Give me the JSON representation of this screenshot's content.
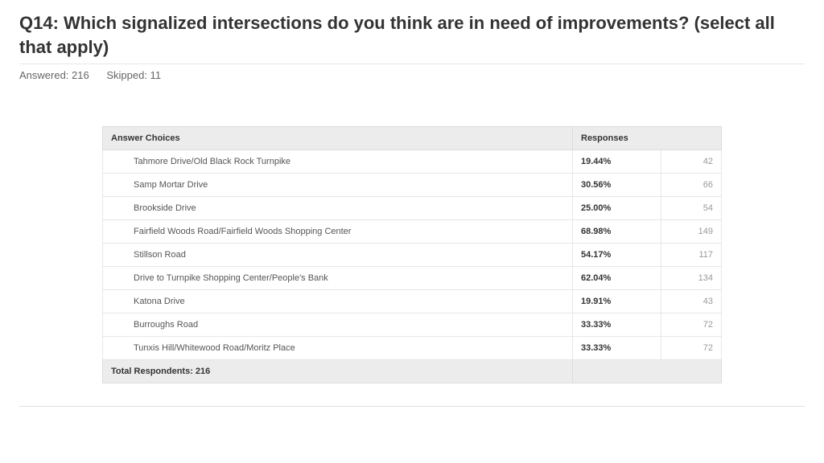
{
  "question": {
    "title": "Q14: Which signalized intersections do you think are in need of improvements?  (select all that apply)",
    "answered_label": "Answered: 216",
    "skipped_label": "Skipped: 11"
  },
  "table": {
    "header_choices": "Answer Choices",
    "header_responses": "Responses",
    "rows": [
      {
        "label": "Tahmore Drive/Old Black Rock Turnpike",
        "pct": "19.44%",
        "count": "42"
      },
      {
        "label": "Samp Mortar Drive",
        "pct": "30.56%",
        "count": "66"
      },
      {
        "label": "Brookside Drive",
        "pct": "25.00%",
        "count": "54"
      },
      {
        "label": "Fairfield Woods Road/Fairfield Woods Shopping Center",
        "pct": "68.98%",
        "count": "149"
      },
      {
        "label": "Stillson Road",
        "pct": "54.17%",
        "count": "117"
      },
      {
        "label": "Drive to Turnpike Shopping Center/People's Bank",
        "pct": "62.04%",
        "count": "134"
      },
      {
        "label": "Katona Drive",
        "pct": "19.91%",
        "count": "43"
      },
      {
        "label": "Burroughs Road",
        "pct": "33.33%",
        "count": "72"
      },
      {
        "label": "Tunxis Hill/Whitewood Road/Moritz Place",
        "pct": "33.33%",
        "count": "72"
      }
    ],
    "footer": "Total Respondents: 216"
  },
  "style": {
    "title_color": "#333333",
    "meta_color": "#666666",
    "header_bg": "#ececec",
    "row_border": "#e6e6e6",
    "count_color": "#999999"
  }
}
